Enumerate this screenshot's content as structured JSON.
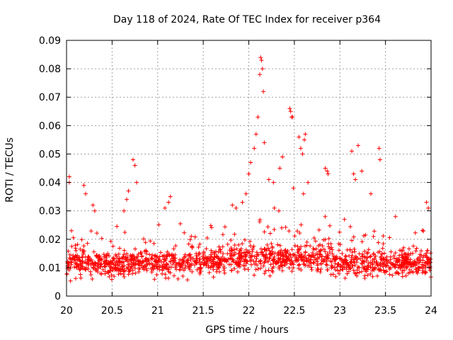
{
  "chart_data": {
    "type": "scatter",
    "title": "Day 118 of 2024, Rate Of TEC Index for receiver p364",
    "xlabel": "GPS time / hours",
    "ylabel": "ROTI / TECUs",
    "xlim": [
      20,
      24
    ],
    "ylim": [
      0,
      0.09
    ],
    "x_ticks": [
      20,
      20.5,
      21,
      21.5,
      22,
      22.5,
      23,
      23.5,
      24
    ],
    "x_tick_labels": [
      "20",
      "20.5",
      "21",
      "21.5",
      "22",
      "22.5",
      "23",
      "23.5",
      "24"
    ],
    "y_ticks": [
      0,
      0.01,
      0.02,
      0.03,
      0.04,
      0.05,
      0.06,
      0.07,
      0.08,
      0.09
    ],
    "y_tick_labels": [
      "0",
      "0.01",
      "0.02",
      "0.03",
      "0.04",
      "0.05",
      "0.06",
      "0.07",
      "0.08",
      "0.09"
    ],
    "grid": true,
    "marker": "+",
    "marker_color": "#ff0000",
    "series": [
      {
        "name": "ROTI",
        "outliers": [
          [
            20.03,
            0.04
          ],
          [
            20.03,
            0.042
          ],
          [
            20.19,
            0.039
          ],
          [
            20.21,
            0.036
          ],
          [
            20.29,
            0.032
          ],
          [
            20.31,
            0.03
          ],
          [
            20.63,
            0.03
          ],
          [
            20.66,
            0.034
          ],
          [
            20.68,
            0.037
          ],
          [
            20.73,
            0.048
          ],
          [
            20.75,
            0.046
          ],
          [
            20.77,
            0.04
          ],
          [
            21.08,
            0.031
          ],
          [
            21.12,
            0.033
          ],
          [
            21.14,
            0.035
          ],
          [
            21.82,
            0.032
          ],
          [
            21.86,
            0.031
          ],
          [
            21.93,
            0.033
          ],
          [
            21.97,
            0.036
          ],
          [
            22.0,
            0.043
          ],
          [
            22.02,
            0.047
          ],
          [
            22.06,
            0.052
          ],
          [
            22.08,
            0.057
          ],
          [
            22.1,
            0.063
          ],
          [
            22.12,
            0.078
          ],
          [
            22.13,
            0.084
          ],
          [
            22.14,
            0.083
          ],
          [
            22.15,
            0.08
          ],
          [
            22.16,
            0.072
          ],
          [
            22.17,
            0.054
          ],
          [
            22.22,
            0.041
          ],
          [
            22.27,
            0.04
          ],
          [
            22.34,
            0.045
          ],
          [
            22.37,
            0.049
          ],
          [
            22.45,
            0.066
          ],
          [
            22.46,
            0.065
          ],
          [
            22.47,
            0.063
          ],
          [
            22.48,
            0.063
          ],
          [
            22.49,
            0.038
          ],
          [
            22.55,
            0.056
          ],
          [
            22.57,
            0.052
          ],
          [
            22.59,
            0.05
          ],
          [
            22.61,
            0.055
          ],
          [
            22.62,
            0.057
          ],
          [
            22.65,
            0.04
          ],
          [
            22.6,
            0.036
          ],
          [
            22.84,
            0.045
          ],
          [
            22.86,
            0.044
          ],
          [
            22.87,
            0.043
          ],
          [
            23.13,
            0.051
          ],
          [
            23.15,
            0.043
          ],
          [
            23.17,
            0.041
          ],
          [
            23.2,
            0.053
          ],
          [
            23.24,
            0.044
          ],
          [
            23.34,
            0.036
          ],
          [
            23.43,
            0.052
          ],
          [
            23.44,
            0.048
          ],
          [
            23.95,
            0.033
          ],
          [
            23.97,
            0.031
          ],
          [
            23.61,
            0.028
          ],
          [
            22.28,
            0.031
          ],
          [
            22.33,
            0.03
          ],
          [
            23.05,
            0.027
          ]
        ]
      }
    ]
  }
}
